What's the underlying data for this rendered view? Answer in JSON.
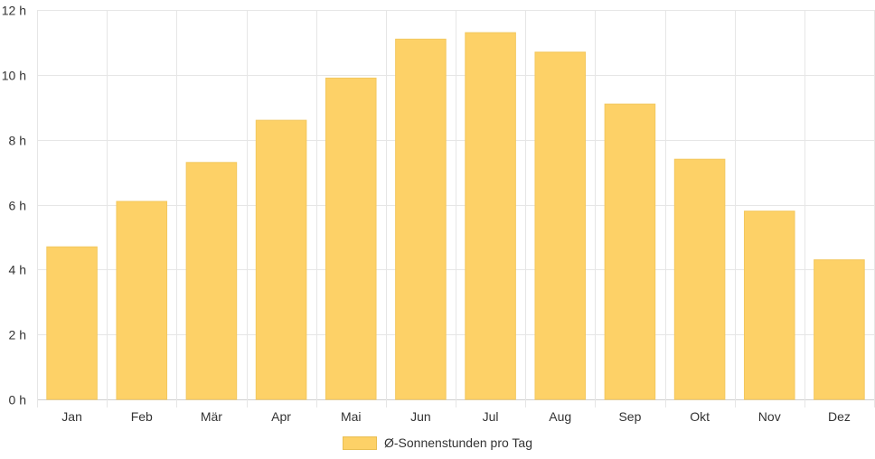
{
  "chart_data": {
    "type": "bar",
    "categories": [
      "Jan",
      "Feb",
      "Mär",
      "Apr",
      "Mai",
      "Jun",
      "Jul",
      "Aug",
      "Sep",
      "Okt",
      "Nov",
      "Dez"
    ],
    "series": [
      {
        "name": "Ø-Sonnenstunden pro Tag",
        "values": [
          4.7,
          6.1,
          7.3,
          8.6,
          9.9,
          11.1,
          11.3,
          10.7,
          9.1,
          7.4,
          5.8,
          4.3
        ],
        "color": "#fdd167"
      }
    ],
    "ylim": [
      0,
      12
    ],
    "y_ticks": [
      "0 h",
      "2 h",
      "4 h",
      "6 h",
      "8 h",
      "10 h",
      "12 h"
    ],
    "grid": true,
    "legend_position": "bottom"
  }
}
